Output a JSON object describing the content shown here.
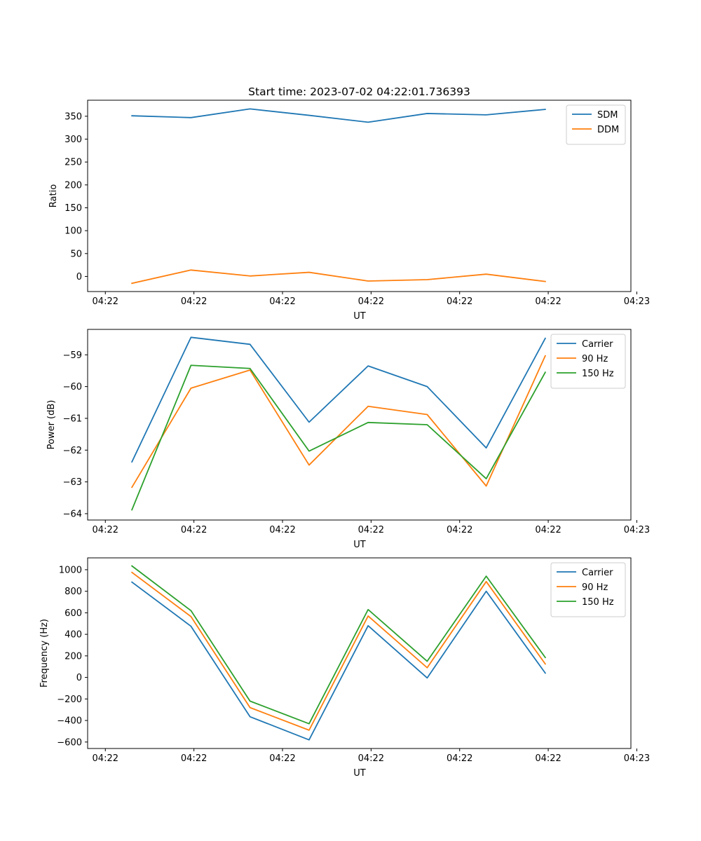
{
  "chart_data": [
    {
      "type": "line",
      "title": "Start time: 2023-07-02 04:22:01.736393",
      "xlabel": "UT",
      "ylabel": "Ratio",
      "x": [
        0.9,
        2.9,
        4.9,
        6.9,
        8.9,
        10.9,
        12.9,
        14.9
      ],
      "xlim": [
        -0.6,
        17.8
      ],
      "xticks": [
        0,
        3,
        6,
        9,
        12,
        15,
        18
      ],
      "xticklabels": [
        "04:22",
        "04:22",
        "04:22",
        "04:22",
        "04:22",
        "04:22",
        "04:23"
      ],
      "ylim": [
        -33,
        385
      ],
      "yticks": [
        0,
        50,
        100,
        150,
        200,
        250,
        300,
        350
      ],
      "yticklabels": [
        "0",
        "50",
        "100",
        "150",
        "200",
        "250",
        "300",
        "350"
      ],
      "legend_position": "top-right",
      "series": [
        {
          "name": "SDM",
          "color": "#1f77b4",
          "values": [
            351,
            347,
            366,
            352,
            337,
            356,
            353,
            365
          ]
        },
        {
          "name": "DDM",
          "color": "#ff7f0e",
          "values": [
            -15,
            14,
            1,
            9,
            -10,
            -7,
            5,
            -11
          ]
        }
      ]
    },
    {
      "type": "line",
      "title": "",
      "xlabel": "UT",
      "ylabel": "Power (dB)",
      "x": [
        0.9,
        2.9,
        4.9,
        6.9,
        8.9,
        10.9,
        12.9,
        14.9
      ],
      "xlim": [
        -0.6,
        17.8
      ],
      "xticks": [
        0,
        3,
        6,
        9,
        12,
        15,
        18
      ],
      "xticklabels": [
        "04:22",
        "04:22",
        "04:22",
        "04:22",
        "04:22",
        "04:22",
        "04:23"
      ],
      "ylim": [
        -64.2,
        -58.2
      ],
      "yticks": [
        -64,
        -63,
        -62,
        -61,
        -60,
        -59
      ],
      "yticklabels": [
        "−64",
        "−63",
        "−62",
        "−61",
        "−60",
        "−59"
      ],
      "legend_position": "top-right",
      "series": [
        {
          "name": "Carrier",
          "color": "#1f77b4",
          "values": [
            -62.37,
            -58.45,
            -58.67,
            -61.12,
            -59.35,
            -60.0,
            -61.93,
            -58.48
          ]
        },
        {
          "name": "90 Hz",
          "color": "#ff7f0e",
          "values": [
            -63.17,
            -60.05,
            -59.48,
            -62.47,
            -60.62,
            -60.88,
            -63.13,
            -59.03
          ]
        },
        {
          "name": "150 Hz",
          "color": "#2ca02c",
          "values": [
            -63.88,
            -59.33,
            -59.43,
            -62.03,
            -61.13,
            -61.2,
            -62.9,
            -59.55
          ]
        }
      ]
    },
    {
      "type": "line",
      "title": "",
      "xlabel": "UT",
      "ylabel": "Frequency (Hz)",
      "x": [
        0.9,
        2.9,
        4.9,
        6.9,
        8.9,
        10.9,
        12.9,
        14.9
      ],
      "xlim": [
        -0.6,
        17.8
      ],
      "xticks": [
        0,
        3,
        6,
        9,
        12,
        15,
        18
      ],
      "xticklabels": [
        "04:22",
        "04:22",
        "04:22",
        "04:22",
        "04:22",
        "04:22",
        "04:23"
      ],
      "ylim": [
        -660,
        1110
      ],
      "yticks": [
        -600,
        -400,
        -200,
        0,
        200,
        400,
        600,
        800,
        1000
      ],
      "yticklabels": [
        "−600",
        "−400",
        "−200",
        "0",
        "200",
        "400",
        "600",
        "800",
        "1000"
      ],
      "legend_position": "top-right",
      "series": [
        {
          "name": "Carrier",
          "color": "#1f77b4",
          "values": [
            885,
            475,
            -365,
            -580,
            480,
            -5,
            800,
            40
          ]
        },
        {
          "name": "90 Hz",
          "color": "#ff7f0e",
          "values": [
            975,
            565,
            -280,
            -490,
            570,
            90,
            890,
            125
          ]
        },
        {
          "name": "150 Hz",
          "color": "#2ca02c",
          "values": [
            1035,
            620,
            -220,
            -430,
            630,
            150,
            940,
            185
          ]
        }
      ]
    }
  ]
}
